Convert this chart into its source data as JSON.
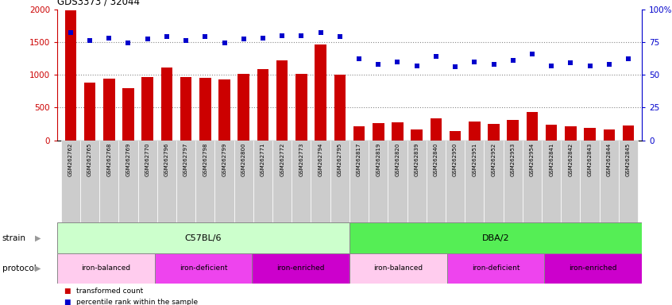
{
  "title": "GDS3373 / 32044",
  "samples": [
    "GSM262762",
    "GSM262765",
    "GSM262768",
    "GSM262769",
    "GSM262770",
    "GSM262796",
    "GSM262797",
    "GSM262798",
    "GSM262799",
    "GSM262800",
    "GSM262771",
    "GSM262772",
    "GSM262773",
    "GSM262794",
    "GSM262795",
    "GSM262817",
    "GSM262819",
    "GSM262820",
    "GSM262839",
    "GSM262840",
    "GSM262950",
    "GSM262951",
    "GSM262952",
    "GSM262953",
    "GSM262954",
    "GSM262841",
    "GSM262842",
    "GSM262843",
    "GSM262844",
    "GSM262845"
  ],
  "bar_values": [
    1980,
    880,
    940,
    800,
    970,
    1110,
    970,
    950,
    930,
    1010,
    1090,
    1220,
    1010,
    1460,
    1000,
    210,
    260,
    280,
    160,
    330,
    140,
    290,
    250,
    310,
    430,
    240,
    210,
    185,
    165,
    220
  ],
  "dot_values": [
    82,
    76,
    78,
    74,
    77,
    79,
    76,
    79,
    74,
    77,
    78,
    80,
    80,
    82,
    79,
    62,
    58,
    60,
    57,
    64,
    56,
    60,
    58,
    61,
    66,
    57,
    59,
    57,
    58,
    62
  ],
  "bar_color": "#cc0000",
  "dot_color": "#0000cc",
  "ylim_left": [
    0,
    2000
  ],
  "ylim_right": [
    0,
    100
  ],
  "yticks_left": [
    0,
    500,
    1000,
    1500,
    2000
  ],
  "yticks_right": [
    0,
    25,
    50,
    75,
    100
  ],
  "strain_groups": [
    {
      "label": "C57BL/6",
      "start": 0,
      "end": 15,
      "color": "#ccffcc"
    },
    {
      "label": "DBA/2",
      "start": 15,
      "end": 30,
      "color": "#55ee55"
    }
  ],
  "protocol_groups": [
    {
      "label": "iron-balanced",
      "start": 0,
      "end": 5,
      "color": "#ffccee"
    },
    {
      "label": "iron-deficient",
      "start": 5,
      "end": 10,
      "color": "#ee44ee"
    },
    {
      "label": "iron-enriched",
      "start": 10,
      "end": 15,
      "color": "#cc00cc"
    },
    {
      "label": "iron-balanced",
      "start": 15,
      "end": 20,
      "color": "#ffccee"
    },
    {
      "label": "iron-deficient",
      "start": 20,
      "end": 25,
      "color": "#ee44ee"
    },
    {
      "label": "iron-enriched",
      "start": 25,
      "end": 30,
      "color": "#cc00cc"
    }
  ],
  "legend_items": [
    {
      "label": "transformed count",
      "color": "#cc0000"
    },
    {
      "label": "percentile rank within the sample",
      "color": "#0000cc"
    }
  ],
  "bg_color": "#ffffff",
  "tick_bg_color": "#cccccc",
  "grid_dotted_color": "#888888",
  "right_ytick_labels": [
    "0",
    "25",
    "50",
    "75",
    "100%"
  ]
}
